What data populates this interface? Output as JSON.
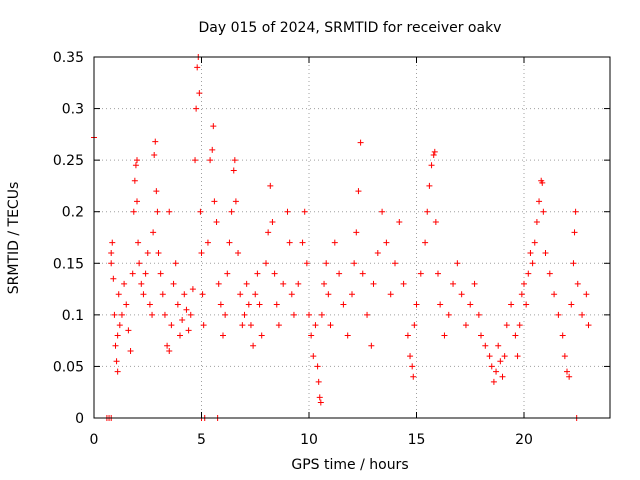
{
  "chart_data": {
    "type": "scatter",
    "title": "Day 015 of 2024, SRMTID for receiver oakv",
    "xlabel": "GPS time / hours",
    "ylabel": "SRMTID / TECUs",
    "xlim": [
      0,
      24
    ],
    "ylim": [
      0,
      0.35
    ],
    "x_ticks": [
      0,
      5,
      10,
      15,
      20
    ],
    "x_tick_labels": [
      "0",
      "5",
      "10",
      "15",
      "20"
    ],
    "y_ticks": [
      0,
      0.05,
      0.1,
      0.15,
      0.2,
      0.25,
      0.3,
      0.35
    ],
    "y_tick_labels": [
      "0",
      "0.05",
      "0.1",
      "0.15",
      "0.2",
      "0.25",
      "0.3",
      "0.35"
    ],
    "grid": true,
    "marker": "plus",
    "series": [
      {
        "name": "SRMTID",
        "color": "#ff0000",
        "points": [
          [
            0.0,
            0.272
          ],
          [
            0.6,
            0.0
          ],
          [
            0.7,
            0.0
          ],
          [
            0.8,
            0.0
          ],
          [
            0.8,
            0.15
          ],
          [
            0.8,
            0.16
          ],
          [
            0.85,
            0.17
          ],
          [
            0.9,
            0.135
          ],
          [
            0.95,
            0.1
          ],
          [
            1.0,
            0.07
          ],
          [
            1.05,
            0.055
          ],
          [
            1.1,
            0.045
          ],
          [
            1.1,
            0.08
          ],
          [
            1.15,
            0.12
          ],
          [
            1.2,
            0.09
          ],
          [
            1.3,
            0.1
          ],
          [
            1.4,
            0.13
          ],
          [
            1.5,
            0.11
          ],
          [
            1.6,
            0.085
          ],
          [
            1.7,
            0.065
          ],
          [
            1.8,
            0.14
          ],
          [
            1.85,
            0.2
          ],
          [
            1.9,
            0.23
          ],
          [
            1.95,
            0.245
          ],
          [
            2.0,
            0.25
          ],
          [
            2.0,
            0.21
          ],
          [
            2.05,
            0.17
          ],
          [
            2.1,
            0.15
          ],
          [
            2.2,
            0.13
          ],
          [
            2.3,
            0.12
          ],
          [
            2.4,
            0.14
          ],
          [
            2.5,
            0.16
          ],
          [
            2.6,
            0.11
          ],
          [
            2.7,
            0.1
          ],
          [
            2.75,
            0.18
          ],
          [
            2.8,
            0.255
          ],
          [
            2.85,
            0.268
          ],
          [
            2.9,
            0.22
          ],
          [
            2.95,
            0.2
          ],
          [
            3.0,
            0.16
          ],
          [
            3.1,
            0.14
          ],
          [
            3.2,
            0.12
          ],
          [
            3.3,
            0.1
          ],
          [
            3.4,
            0.07
          ],
          [
            3.5,
            0.065
          ],
          [
            3.5,
            0.2
          ],
          [
            3.6,
            0.09
          ],
          [
            3.7,
            0.13
          ],
          [
            3.8,
            0.15
          ],
          [
            3.9,
            0.11
          ],
          [
            4.0,
            0.08
          ],
          [
            4.1,
            0.095
          ],
          [
            4.2,
            0.12
          ],
          [
            4.3,
            0.105
          ],
          [
            4.4,
            0.085
          ],
          [
            4.5,
            0.1
          ],
          [
            4.6,
            0.125
          ],
          [
            4.7,
            0.25
          ],
          [
            4.75,
            0.3
          ],
          [
            4.8,
            0.34
          ],
          [
            4.85,
            0.35
          ],
          [
            4.9,
            0.315
          ],
          [
            4.95,
            0.2
          ],
          [
            5.0,
            0.16
          ],
          [
            5.0,
            0.0
          ],
          [
            5.05,
            0.12
          ],
          [
            5.1,
            0.09
          ],
          [
            5.15,
            0.0
          ],
          [
            5.3,
            0.17
          ],
          [
            5.4,
            0.25
          ],
          [
            5.5,
            0.26
          ],
          [
            5.55,
            0.283
          ],
          [
            5.6,
            0.21
          ],
          [
            5.7,
            0.19
          ],
          [
            5.75,
            0.0
          ],
          [
            5.8,
            0.13
          ],
          [
            5.9,
            0.11
          ],
          [
            6.0,
            0.08
          ],
          [
            6.1,
            0.1
          ],
          [
            6.2,
            0.14
          ],
          [
            6.3,
            0.17
          ],
          [
            6.4,
            0.2
          ],
          [
            6.5,
            0.24
          ],
          [
            6.55,
            0.25
          ],
          [
            6.6,
            0.21
          ],
          [
            6.7,
            0.16
          ],
          [
            6.8,
            0.12
          ],
          [
            6.9,
            0.09
          ],
          [
            7.0,
            0.1
          ],
          [
            7.1,
            0.13
          ],
          [
            7.2,
            0.11
          ],
          [
            7.3,
            0.09
          ],
          [
            7.4,
            0.07
          ],
          [
            7.5,
            0.12
          ],
          [
            7.6,
            0.14
          ],
          [
            7.7,
            0.11
          ],
          [
            7.8,
            0.08
          ],
          [
            8.0,
            0.15
          ],
          [
            8.1,
            0.18
          ],
          [
            8.2,
            0.225
          ],
          [
            8.3,
            0.19
          ],
          [
            8.4,
            0.14
          ],
          [
            8.5,
            0.11
          ],
          [
            8.6,
            0.09
          ],
          [
            8.8,
            0.13
          ],
          [
            9.0,
            0.2
          ],
          [
            9.1,
            0.17
          ],
          [
            9.2,
            0.12
          ],
          [
            9.3,
            0.1
          ],
          [
            9.5,
            0.13
          ],
          [
            9.7,
            0.17
          ],
          [
            9.8,
            0.2
          ],
          [
            9.9,
            0.15
          ],
          [
            10.0,
            0.1
          ],
          [
            10.1,
            0.08
          ],
          [
            10.2,
            0.06
          ],
          [
            10.3,
            0.09
          ],
          [
            10.4,
            0.05
          ],
          [
            10.45,
            0.035
          ],
          [
            10.5,
            0.02
          ],
          [
            10.55,
            0.015
          ],
          [
            10.6,
            0.1
          ],
          [
            10.7,
            0.13
          ],
          [
            10.8,
            0.15
          ],
          [
            10.9,
            0.12
          ],
          [
            11.0,
            0.09
          ],
          [
            11.2,
            0.17
          ],
          [
            11.4,
            0.14
          ],
          [
            11.6,
            0.11
          ],
          [
            11.8,
            0.08
          ],
          [
            12.0,
            0.12
          ],
          [
            12.1,
            0.15
          ],
          [
            12.2,
            0.18
          ],
          [
            12.3,
            0.22
          ],
          [
            12.4,
            0.267
          ],
          [
            12.5,
            0.14
          ],
          [
            12.7,
            0.1
          ],
          [
            12.9,
            0.07
          ],
          [
            13.0,
            0.13
          ],
          [
            13.2,
            0.16
          ],
          [
            13.4,
            0.2
          ],
          [
            13.6,
            0.17
          ],
          [
            13.8,
            0.12
          ],
          [
            14.0,
            0.15
          ],
          [
            14.2,
            0.19
          ],
          [
            14.4,
            0.13
          ],
          [
            14.6,
            0.08
          ],
          [
            14.7,
            0.06
          ],
          [
            14.8,
            0.05
          ],
          [
            14.85,
            0.04
          ],
          [
            14.9,
            0.09
          ],
          [
            15.0,
            0.11
          ],
          [
            15.2,
            0.14
          ],
          [
            15.4,
            0.17
          ],
          [
            15.5,
            0.2
          ],
          [
            15.6,
            0.225
          ],
          [
            15.7,
            0.245
          ],
          [
            15.8,
            0.255
          ],
          [
            15.85,
            0.258
          ],
          [
            15.9,
            0.19
          ],
          [
            16.0,
            0.14
          ],
          [
            16.1,
            0.11
          ],
          [
            16.3,
            0.08
          ],
          [
            16.5,
            0.1
          ],
          [
            16.7,
            0.13
          ],
          [
            16.9,
            0.15
          ],
          [
            17.1,
            0.12
          ],
          [
            17.3,
            0.09
          ],
          [
            17.5,
            0.11
          ],
          [
            17.7,
            0.13
          ],
          [
            17.9,
            0.1
          ],
          [
            18.0,
            0.08
          ],
          [
            18.2,
            0.07
          ],
          [
            18.4,
            0.06
          ],
          [
            18.5,
            0.05
          ],
          [
            18.6,
            0.035
          ],
          [
            18.7,
            0.045
          ],
          [
            18.8,
            0.07
          ],
          [
            18.9,
            0.055
          ],
          [
            19.0,
            0.04
          ],
          [
            19.1,
            0.06
          ],
          [
            19.2,
            0.09
          ],
          [
            19.4,
            0.11
          ],
          [
            19.6,
            0.08
          ],
          [
            19.7,
            0.06
          ],
          [
            19.8,
            0.09
          ],
          [
            19.9,
            0.12
          ],
          [
            20.0,
            0.13
          ],
          [
            20.1,
            0.11
          ],
          [
            20.2,
            0.14
          ],
          [
            20.3,
            0.16
          ],
          [
            20.4,
            0.15
          ],
          [
            20.5,
            0.17
          ],
          [
            20.6,
            0.19
          ],
          [
            20.7,
            0.21
          ],
          [
            20.8,
            0.23
          ],
          [
            20.85,
            0.228
          ],
          [
            20.9,
            0.2
          ],
          [
            21.0,
            0.16
          ],
          [
            21.2,
            0.14
          ],
          [
            21.4,
            0.12
          ],
          [
            21.6,
            0.1
          ],
          [
            21.8,
            0.08
          ],
          [
            21.9,
            0.06
          ],
          [
            22.0,
            0.045
          ],
          [
            22.1,
            0.04
          ],
          [
            22.2,
            0.11
          ],
          [
            22.3,
            0.15
          ],
          [
            22.35,
            0.18
          ],
          [
            22.4,
            0.2
          ],
          [
            22.45,
            0.0
          ],
          [
            22.5,
            0.13
          ],
          [
            22.7,
            0.1
          ],
          [
            22.9,
            0.12
          ],
          [
            23.0,
            0.09
          ]
        ]
      }
    ]
  }
}
